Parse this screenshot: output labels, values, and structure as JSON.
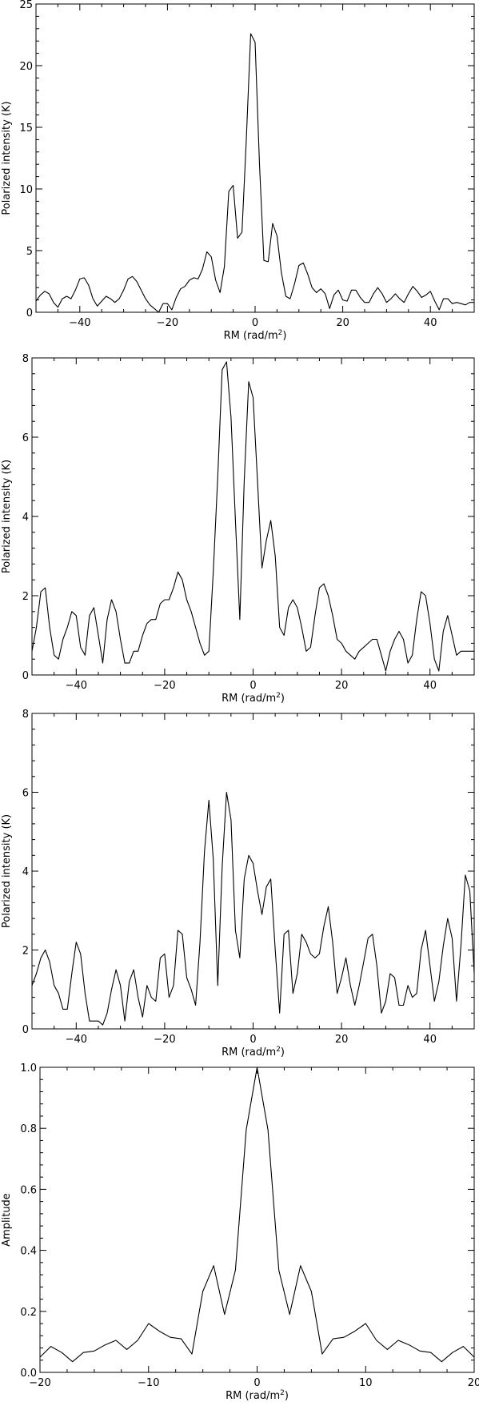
{
  "chart_data": [
    {
      "type": "line",
      "xlabel": "RM (rad/m",
      "xlabel_sup": "2",
      "xlabel_close": ")",
      "ylabel": "Polarized intensity (K)",
      "xlim": [
        -50,
        50
      ],
      "ylim": [
        0,
        25
      ],
      "xticks": [
        -40,
        -20,
        0,
        20,
        40
      ],
      "yticks": [
        0,
        5,
        10,
        15,
        20,
        25
      ],
      "xtick_labels": [
        "−40",
        "−20",
        "0",
        "20",
        "40"
      ],
      "ytick_labels": [
        "0",
        "5",
        "10",
        "15",
        "20",
        "25"
      ],
      "grid": false,
      "series": [
        {
          "x": [
            -50,
            -49,
            -48,
            -47,
            -46,
            -45,
            -44,
            -43,
            -42,
            -41,
            -40,
            -39,
            -38,
            -37,
            -36,
            -35,
            -34,
            -33,
            -32,
            -31,
            -30,
            -29,
            -28,
            -27,
            -26,
            -25,
            -24,
            -23,
            -22,
            -21,
            -20,
            -19,
            -18,
            -17,
            -16,
            -15,
            -14,
            -13,
            -12,
            -11,
            -10,
            -9,
            -8,
            -7,
            -6,
            -5,
            -4,
            -3,
            -2,
            -1,
            0,
            1,
            2,
            3,
            4,
            5,
            6,
            7,
            8,
            9,
            10,
            11,
            12,
            13,
            14,
            15,
            16,
            17,
            18,
            19,
            20,
            21,
            22,
            23,
            24,
            25,
            26,
            27,
            28,
            29,
            30,
            31,
            32,
            33,
            34,
            35,
            36,
            37,
            38,
            39,
            40,
            41,
            42,
            43,
            44,
            45,
            46,
            47,
            48,
            49,
            50
          ],
          "y": [
            0.9,
            1.4,
            1.7,
            1.5,
            0.8,
            0.4,
            1.1,
            1.3,
            1.1,
            1.8,
            2.7,
            2.8,
            2.2,
            1.1,
            0.5,
            0.9,
            1.3,
            1.1,
            0.8,
            1.1,
            1.8,
            2.7,
            2.9,
            2.5,
            1.8,
            1.1,
            0.6,
            0.3,
            0.0,
            0.7,
            0.7,
            0.2,
            1.2,
            1.9,
            2.1,
            2.6,
            2.8,
            2.7,
            3.5,
            4.9,
            4.5,
            2.6,
            1.6,
            3.7,
            9.8,
            10.3,
            6.0,
            6.5,
            14.0,
            22.6,
            21.9,
            12.0,
            4.2,
            4.1,
            7.2,
            6.2,
            3.2,
            1.3,
            1.1,
            2.3,
            3.8,
            4.0,
            3.1,
            2.0,
            1.6,
            1.9,
            1.5,
            0.3,
            1.4,
            1.8,
            1.0,
            0.9,
            1.8,
            1.8,
            1.2,
            0.8,
            0.8,
            1.5,
            2.0,
            1.5,
            0.8,
            1.1,
            1.5,
            1.1,
            0.8,
            1.5,
            2.1,
            1.7,
            1.2,
            1.4,
            1.7,
            0.9,
            0.2,
            1.1,
            1.1,
            0.7,
            0.8,
            0.7,
            0.6,
            0.8,
            0.8
          ]
        }
      ]
    },
    {
      "type": "line",
      "xlabel": "RM (rad/m",
      "xlabel_sup": "2",
      "xlabel_close": ")",
      "ylabel": "Polarized intensity (K)",
      "xlim": [
        -50,
        50
      ],
      "ylim": [
        0,
        8
      ],
      "xticks": [
        -40,
        -20,
        0,
        20,
        40
      ],
      "yticks": [
        0,
        2,
        4,
        6,
        8
      ],
      "xtick_labels": [
        "−40",
        "−20",
        "0",
        "20",
        "40"
      ],
      "ytick_labels": [
        "0",
        "2",
        "4",
        "6",
        "8"
      ],
      "grid": false,
      "series": [
        {
          "x": [
            -50,
            -49,
            -48,
            -47,
            -46,
            -45,
            -44,
            -43,
            -42,
            -41,
            -40,
            -39,
            -38,
            -37,
            -36,
            -35,
            -34,
            -33,
            -32,
            -31,
            -30,
            -29,
            -28,
            -27,
            -26,
            -25,
            -24,
            -23,
            -22,
            -21,
            -20,
            -19,
            -18,
            -17,
            -16,
            -15,
            -14,
            -13,
            -12,
            -11,
            -10,
            -9,
            -8,
            -7,
            -6,
            -5,
            -4,
            -3,
            -2,
            -1,
            0,
            1,
            2,
            3,
            4,
            5,
            6,
            7,
            8,
            9,
            10,
            11,
            12,
            13,
            14,
            15,
            16,
            17,
            18,
            19,
            20,
            21,
            22,
            23,
            24,
            25,
            26,
            27,
            28,
            29,
            30,
            31,
            32,
            33,
            34,
            35,
            36,
            37,
            38,
            39,
            40,
            41,
            42,
            43,
            44,
            45,
            46,
            47,
            48,
            49,
            50
          ],
          "y": [
            0.6,
            1.2,
            2.1,
            2.2,
            1.2,
            0.5,
            0.4,
            0.9,
            1.2,
            1.6,
            1.5,
            0.7,
            0.5,
            1.5,
            1.7,
            1.0,
            0.3,
            1.4,
            1.9,
            1.6,
            0.9,
            0.3,
            0.3,
            0.6,
            0.6,
            1.0,
            1.3,
            1.4,
            1.4,
            1.8,
            1.9,
            1.9,
            2.2,
            2.6,
            2.4,
            1.9,
            1.6,
            1.2,
            0.8,
            0.5,
            0.6,
            2.6,
            5.0,
            7.7,
            7.9,
            6.5,
            3.9,
            1.4,
            4.9,
            7.4,
            7.0,
            4.9,
            2.7,
            3.4,
            3.9,
            3.0,
            1.2,
            1.0,
            1.7,
            1.9,
            1.7,
            1.2,
            0.6,
            0.7,
            1.5,
            2.2,
            2.3,
            2.0,
            1.5,
            0.9,
            0.8,
            0.6,
            0.5,
            0.4,
            0.6,
            0.7,
            0.8,
            0.9,
            0.9,
            0.5,
            0.1,
            0.6,
            0.9,
            1.1,
            0.9,
            0.3,
            0.5,
            1.4,
            2.1,
            2.0,
            1.3,
            0.4,
            0.1,
            1.1,
            1.5,
            1.0,
            0.5,
            0.6,
            0.6,
            0.6,
            0.6
          ]
        }
      ]
    },
    {
      "type": "line",
      "xlabel": "RM (rad/m",
      "xlabel_sup": "2",
      "xlabel_close": ")",
      "ylabel": "Polarized intensity (K)",
      "xlim": [
        -50,
        50
      ],
      "ylim": [
        0,
        8
      ],
      "xticks": [
        -40,
        -20,
        0,
        20,
        40
      ],
      "yticks": [
        0,
        2,
        4,
        6,
        8
      ],
      "xtick_labels": [
        "−40",
        "−20",
        "0",
        "20",
        "40"
      ],
      "ytick_labels": [
        "0",
        "2",
        "4",
        "6",
        "8"
      ],
      "grid": false,
      "series": [
        {
          "x": [
            -50,
            -49,
            -48,
            -47,
            -46,
            -45,
            -44,
            -43,
            -42,
            -41,
            -40,
            -39,
            -38,
            -37,
            -36,
            -35,
            -34,
            -33,
            -32,
            -31,
            -30,
            -29,
            -28,
            -27,
            -26,
            -25,
            -24,
            -23,
            -22,
            -21,
            -20,
            -19,
            -18,
            -17,
            -16,
            -15,
            -14,
            -13,
            -12,
            -11,
            -10,
            -9,
            -8,
            -7,
            -6,
            -5,
            -4,
            -3,
            -2,
            -1,
            0,
            1,
            2,
            3,
            4,
            5,
            6,
            7,
            8,
            9,
            10,
            11,
            12,
            13,
            14,
            15,
            16,
            17,
            18,
            19,
            20,
            21,
            22,
            23,
            24,
            25,
            26,
            27,
            28,
            29,
            30,
            31,
            32,
            33,
            34,
            35,
            36,
            37,
            38,
            39,
            40,
            41,
            42,
            43,
            44,
            45,
            46,
            47,
            48,
            49,
            50
          ],
          "y": [
            1.1,
            1.4,
            1.8,
            2.0,
            1.7,
            1.1,
            0.9,
            0.5,
            0.5,
            1.4,
            2.2,
            1.9,
            0.9,
            0.2,
            0.2,
            0.2,
            0.1,
            0.4,
            1.0,
            1.5,
            1.1,
            0.2,
            1.2,
            1.5,
            0.8,
            0.3,
            1.1,
            0.8,
            0.7,
            1.8,
            1.9,
            0.8,
            1.1,
            2.5,
            2.4,
            1.3,
            1.0,
            0.6,
            2.2,
            4.5,
            5.8,
            4.3,
            1.1,
            4.1,
            6.0,
            5.3,
            2.5,
            1.8,
            3.8,
            4.4,
            4.2,
            3.5,
            2.9,
            3.6,
            3.8,
            2.0,
            0.4,
            2.4,
            2.5,
            0.9,
            1.4,
            2.4,
            2.2,
            1.9,
            1.8,
            1.9,
            2.6,
            3.1,
            2.2,
            0.9,
            1.3,
            1.8,
            1.1,
            0.6,
            1.1,
            1.7,
            2.3,
            2.4,
            1.6,
            0.4,
            0.7,
            1.4,
            1.3,
            0.6,
            0.6,
            1.1,
            0.8,
            0.9,
            2.0,
            2.5,
            1.6,
            0.7,
            1.2,
            2.1,
            2.8,
            2.3,
            0.7,
            2.1,
            3.9,
            3.5,
            1.4
          ]
        }
      ]
    },
    {
      "type": "line",
      "xlabel": "RM (rad/m",
      "xlabel_sup": "2",
      "xlabel_close": ")",
      "ylabel": "Amplitude",
      "xlim": [
        -20,
        20
      ],
      "ylim": [
        0,
        1.0
      ],
      "xticks": [
        -20,
        -10,
        0,
        10,
        20
      ],
      "yticks": [
        0,
        0.2,
        0.4,
        0.6,
        0.8,
        1.0
      ],
      "xtick_labels": [
        "−20",
        "−10",
        "0",
        "10",
        "20"
      ],
      "ytick_labels": [
        "0.0",
        "0.2",
        "0.4",
        "0.6",
        "0.8",
        "1.0"
      ],
      "grid": false,
      "series": [
        {
          "x": [
            -20,
            -19,
            -18,
            -17,
            -16,
            -15,
            -14,
            -13,
            -12,
            -11,
            -10,
            -9,
            -8,
            -7,
            -6,
            -5,
            -4,
            -3,
            -2,
            -1,
            0,
            1,
            2,
            3,
            4,
            5,
            6,
            7,
            8,
            9,
            10,
            11,
            12,
            13,
            14,
            15,
            16,
            17,
            18,
            19,
            20
          ],
          "y": [
            0.05,
            0.085,
            0.065,
            0.035,
            0.065,
            0.07,
            0.09,
            0.105,
            0.075,
            0.105,
            0.16,
            0.135,
            0.115,
            0.11,
            0.06,
            0.265,
            0.35,
            0.19,
            0.335,
            0.795,
            1.0,
            0.795,
            0.335,
            0.19,
            0.35,
            0.265,
            0.06,
            0.11,
            0.115,
            0.135,
            0.16,
            0.105,
            0.075,
            0.105,
            0.09,
            0.07,
            0.065,
            0.035,
            0.065,
            0.085,
            0.05
          ]
        }
      ]
    }
  ]
}
